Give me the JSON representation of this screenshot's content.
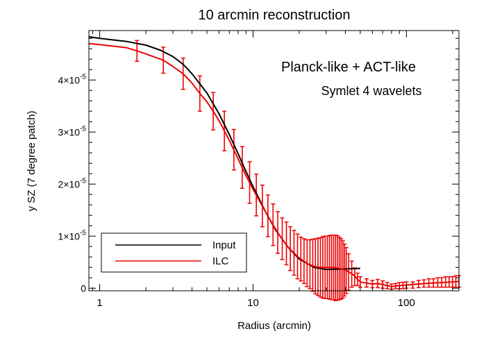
{
  "chart_data": {
    "type": "line",
    "title": "10 arcmin reconstruction",
    "xlabel": "Radius (arcmin)",
    "ylabel": "y SZ (7 degree patch)",
    "x_scale": "log",
    "xlim": [
      0.85,
      220
    ],
    "ylim": [
      -5e-07,
      4.95e-05
    ],
    "grid": false,
    "xticks": [
      {
        "value": 1,
        "label": "1"
      },
      {
        "value": 10,
        "label": "10"
      },
      {
        "value": 100,
        "label": "100"
      }
    ],
    "yticks": [
      {
        "value": 0,
        "mantissa": "0",
        "exponent": ""
      },
      {
        "value": 1e-05,
        "mantissa": "1×10",
        "exponent": "-5"
      },
      {
        "value": 2e-05,
        "mantissa": "2×10",
        "exponent": "-5"
      },
      {
        "value": 3e-05,
        "mantissa": "3×10",
        "exponent": "-5"
      },
      {
        "value": 4e-05,
        "mantissa": "4×10",
        "exponent": "-5"
      }
    ],
    "annotations": [
      "Planck-like + ACT-like",
      "Symlet 4 wavelets"
    ],
    "legend": {
      "position": "bottom-left",
      "entries": [
        {
          "label": "Input",
          "color": "#000000"
        },
        {
          "label": "ILC",
          "color": "#ee0000"
        }
      ]
    },
    "series": [
      {
        "name": "Input",
        "color": "#000000",
        "x": [
          0.85,
          1.0,
          1.5,
          2.0,
          2.5,
          3.0,
          3.5,
          4.0,
          5.0,
          6.0,
          7.0,
          8.0,
          9.0,
          10,
          12,
          14,
          17,
          20,
          25,
          30,
          40,
          50
        ],
        "y": [
          4.83e-05,
          4.8e-05,
          4.74e-05,
          4.67e-05,
          4.57e-05,
          4.45e-05,
          4.3e-05,
          4.12e-05,
          3.75e-05,
          3.35e-05,
          2.95e-05,
          2.58e-05,
          2.24e-05,
          1.95e-05,
          1.48e-05,
          1.12e-05,
          7.8e-06,
          5.6e-06,
          4e-06,
          3.6e-06,
          3.7e-06,
          3.8e-06
        ]
      },
      {
        "name": "ILC",
        "color": "#ee0000",
        "x": [
          0.85,
          1.0,
          1.5,
          1.75,
          2.0,
          2.6,
          3.0,
          3.5,
          4.0,
          4.5,
          5.0,
          5.5,
          6.0,
          7.0,
          8.0,
          9.0,
          10,
          11,
          12,
          13,
          14,
          15,
          17,
          20,
          23,
          25,
          27,
          30,
          33,
          35,
          38,
          40,
          45,
          50,
          60,
          65,
          70,
          80,
          90,
          100,
          120,
          150,
          200,
          220
        ],
        "y": [
          4.7e-05,
          4.68e-05,
          4.62e-05,
          4.56e-05,
          4.5e-05,
          4.38e-05,
          4.26e-05,
          4.12e-05,
          3.94e-05,
          3.74e-05,
          3.58e-05,
          3.4e-05,
          3.22e-05,
          2.84e-05,
          2.48e-05,
          2.16e-05,
          1.9e-05,
          1.68e-05,
          1.48e-05,
          1.3e-05,
          1.14e-05,
          1e-05,
          7.8e-06,
          5.8e-06,
          4.6e-06,
          4.2e-06,
          4e-06,
          4e-06,
          4e-06,
          3.9e-06,
          3.7e-06,
          3.5e-06,
          2.6e-06,
          1.2e-06,
          8e-07,
          9e-07,
          7e-07,
          3e-07,
          5e-07,
          6e-07,
          8e-07,
          1e-06,
          1.2e-06,
          1.3e-06
        ]
      }
    ],
    "errorbars": {
      "series": "ILC",
      "color": "#ee0000",
      "x": [
        1.75,
        2.6,
        3.5,
        4.5,
        5.5,
        6.5,
        7.5,
        8.5,
        9.5,
        10.5,
        11.5,
        12.5,
        13.5,
        14.5,
        15.5,
        16.5,
        17.5,
        18.5,
        19.5,
        20.5,
        21.5,
        22.5,
        23.5,
        24.5,
        25.5,
        26.5,
        27.5,
        28.5,
        29.5,
        30.5,
        31.5,
        32.5,
        33.5,
        34.5,
        35.5,
        36.5,
        37.5,
        38.5,
        39.5,
        40.5,
        42,
        44,
        46,
        48,
        50,
        55,
        60,
        65,
        70,
        75,
        80,
        85,
        90,
        95,
        100,
        110,
        120,
        130,
        140,
        150,
        160,
        170,
        180,
        190,
        200,
        210,
        220
      ],
      "y": [
        4.56e-05,
        4.38e-05,
        4.12e-05,
        3.74e-05,
        3.4e-05,
        3.02e-05,
        2.66e-05,
        2.32e-05,
        2.03e-05,
        1.79e-05,
        1.58e-05,
        1.39e-05,
        1.22e-05,
        1.07e-05,
        9.5e-06,
        8.6e-06,
        7.6e-06,
        6.8e-06,
        6.1e-06,
        5.6e-06,
        5.2e-06,
        4.8e-06,
        4.6e-06,
        4.4e-06,
        4.2e-06,
        4.1e-06,
        4e-06,
        4e-06,
        4e-06,
        4e-06,
        4e-06,
        4e-06,
        4e-06,
        3.9e-06,
        3.9e-06,
        3.8e-06,
        3.7e-06,
        3.6e-06,
        3.5e-06,
        3.4e-06,
        3.1e-06,
        2.7e-06,
        2.2e-06,
        1.7e-06,
        1.2e-06,
        1e-06,
        8e-07,
        9e-07,
        7e-07,
        5e-07,
        3e-07,
        4e-07,
        5e-07,
        5e-07,
        6e-07,
        6e-07,
        8e-07,
        9e-07,
        1e-06,
        1e-06,
        1.1e-06,
        1.1e-06,
        1.2e-06,
        1.2e-06,
        1.2e-06,
        1.3e-06,
        1.3e-06
      ],
      "err": [
        2e-06,
        2.5e-06,
        3e-06,
        3.4e-06,
        3.6e-06,
        3.8e-06,
        3.9e-06,
        4e-06,
        4e-06,
        4e-06,
        4e-06,
        4e-06,
        4e-06,
        4e-06,
        4e-06,
        4.1e-06,
        4.2e-06,
        4.3e-06,
        4.3e-06,
        4.2e-06,
        4.3e-06,
        4.5e-06,
        4.7e-06,
        5e-06,
        5.3e-06,
        5.5e-06,
        5.7e-06,
        5.9e-06,
        6e-06,
        6e-06,
        6.1e-06,
        6.2e-06,
        6.2e-06,
        6.3e-06,
        6.2e-06,
        6e-06,
        5.8e-06,
        5.5e-06,
        5e-06,
        4.4e-06,
        3.5e-06,
        2.5e-06,
        1.7e-06,
        1.2e-06,
        1e-06,
        8e-07,
        7e-07,
        8e-07,
        7e-07,
        6e-07,
        5e-07,
        5e-07,
        6e-07,
        6e-07,
        6e-07,
        6e-07,
        7e-07,
        7e-07,
        8e-07,
        8e-07,
        9e-07,
        9e-07,
        1e-06,
        1e-06,
        1e-06,
        1.1e-06,
        1.1e-06
      ]
    }
  }
}
